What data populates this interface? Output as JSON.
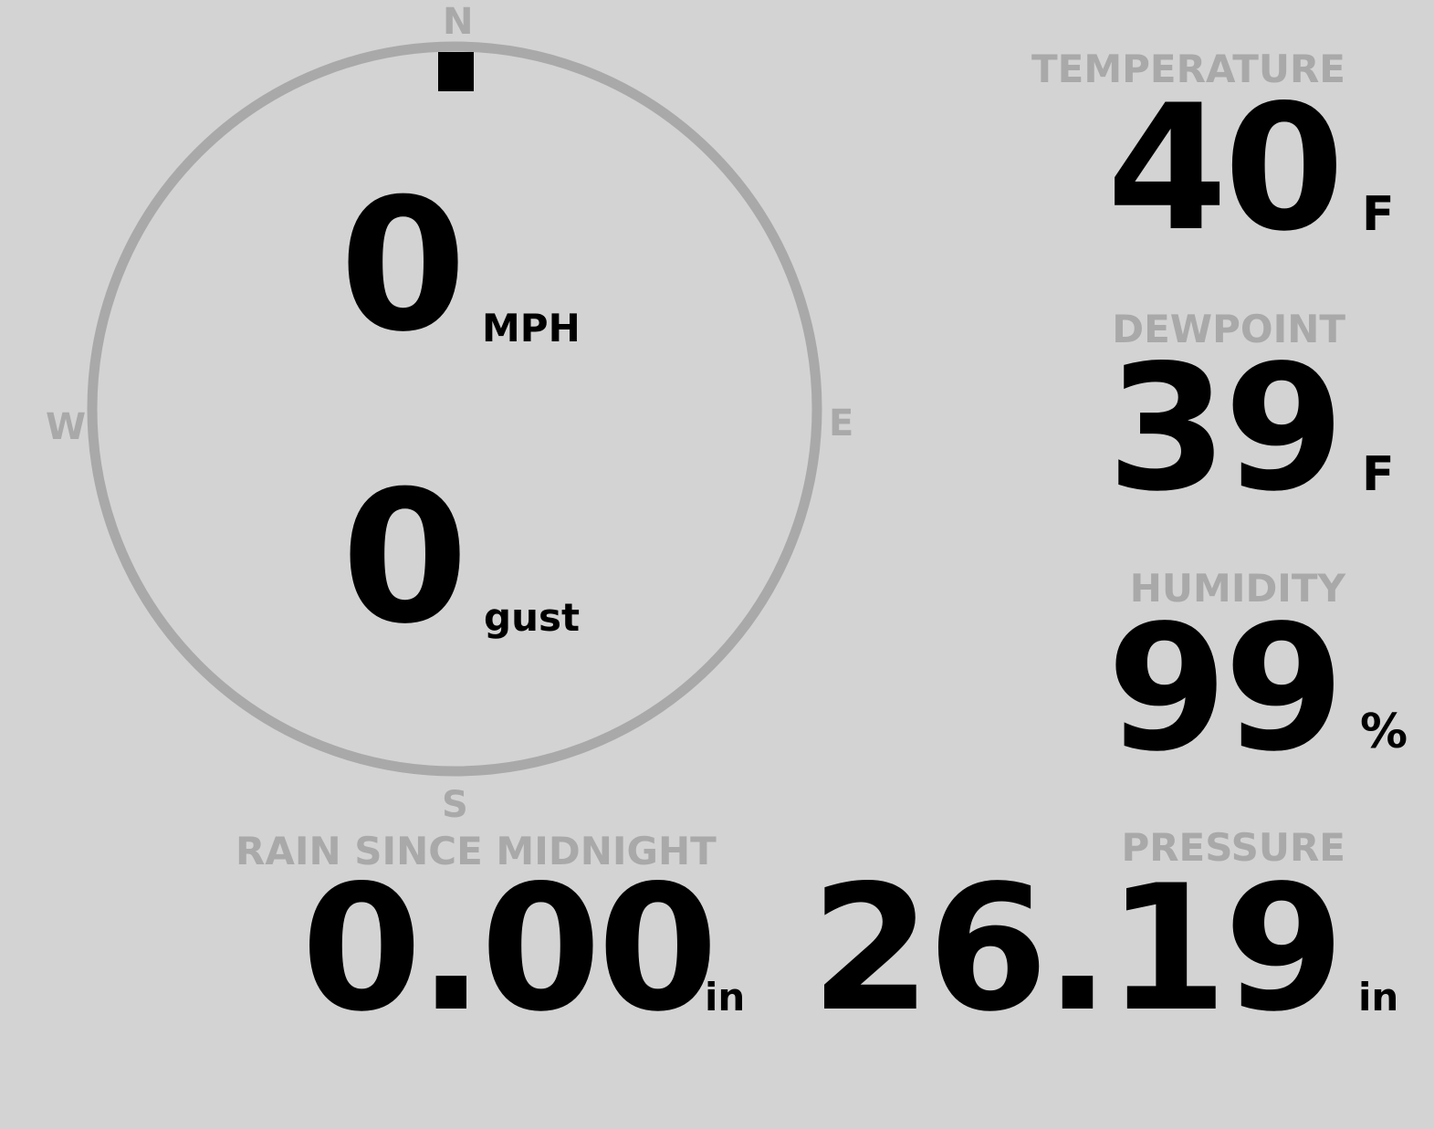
{
  "wind": {
    "compass": {
      "north": "N",
      "east": "E",
      "south": "S",
      "west": "W"
    },
    "direction_degrees": 0,
    "speed": "0",
    "speed_unit": "MPH",
    "gust": "0",
    "gust_unit": "gust"
  },
  "temperature": {
    "label": "TEMPERATURE",
    "value": "40",
    "unit": "F"
  },
  "dewpoint": {
    "label": "DEWPOINT",
    "value": "39",
    "unit": "F"
  },
  "humidity": {
    "label": "HUMIDITY",
    "value": "99",
    "unit": "%"
  },
  "rain": {
    "label": "RAIN SINCE MIDNIGHT",
    "value": "0.00",
    "unit": "in"
  },
  "pressure": {
    "label": "PRESSURE",
    "value": "26.19",
    "unit": "in"
  },
  "colors": {
    "background": "#d3d3d3",
    "label": "#a9a9a9",
    "value": "#000000"
  }
}
